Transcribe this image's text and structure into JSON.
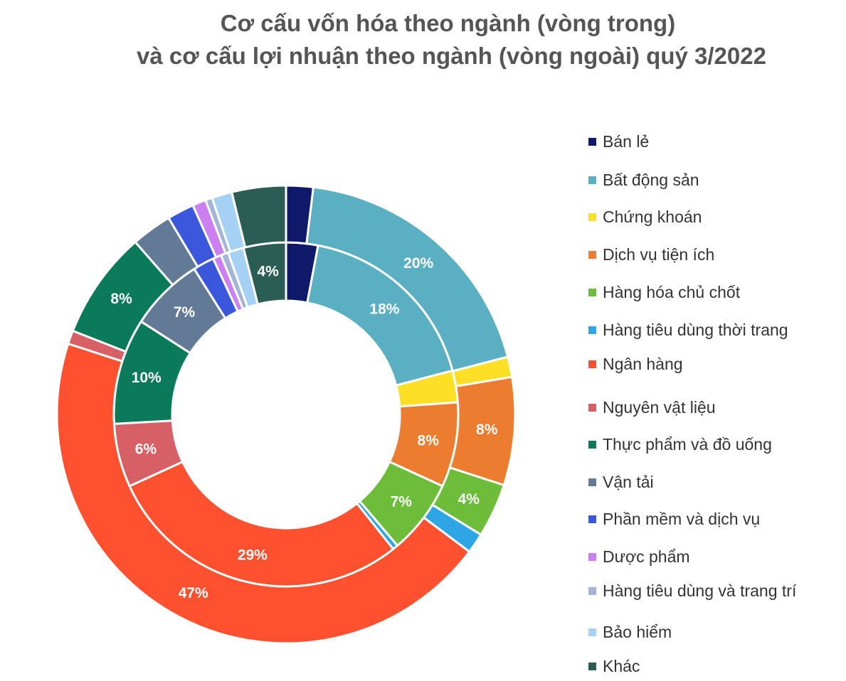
{
  "title_line1": "Cơ cấu vốn hóa theo ngành (vòng trong)",
  "title_line2": "và cơ cấu lợi nhuận theo ngành (vòng ngoài) quý 3/2022",
  "chart_data": {
    "type": "pie",
    "subtype": "double-doughnut",
    "title": "Cơ cấu vốn hóa theo ngành (vòng trong) và cơ cấu lợi nhuận theo ngành (vòng ngoài) quý 3/2022",
    "legend_position": "right",
    "categories": [
      "Bán lẻ",
      "Bất động sản",
      "Chứng khoán",
      "Dịch vụ tiện ích",
      "Hàng hóa chủ chốt",
      "Hàng tiêu dùng thời trang",
      "Ngân hàng",
      "Nguyên vật liệu",
      "Thực phẩm và đồ uống",
      "Vận tải",
      "Phần mềm và dịch vụ",
      "Dược phẩm",
      "Hàng tiêu dùng và trang trí",
      "Bảo hiểm",
      "Khác"
    ],
    "colors": [
      "#0f1a6b",
      "#5aafc3",
      "#fde026",
      "#ec7c30",
      "#6dbd3a",
      "#2ea6e6",
      "#ff5130",
      "#d66065",
      "#0a7a5a",
      "#627a95",
      "#3b57db",
      "#cc80f0",
      "#a3b4d4",
      "#a5d1f5",
      "#2a5e55"
    ],
    "series": [
      {
        "name": "vòng trong",
        "values": [
          3,
          18,
          3,
          8,
          7,
          0.5,
          29,
          6,
          10,
          7,
          2,
          0.8,
          0.7,
          1.5,
          4
        ],
        "labels": [
          "",
          "18%",
          "",
          "8%",
          "7%",
          "",
          "29%",
          "6%",
          "10%",
          "7%",
          "",
          "",
          "",
          "",
          "4%"
        ]
      },
      {
        "name": "vòng ngoài",
        "values": [
          2,
          20,
          1.5,
          8,
          4,
          1.5,
          47,
          1,
          8,
          3,
          2,
          1,
          0.5,
          1.5,
          4
        ],
        "labels": [
          "",
          "20%",
          "",
          "8%",
          "4%",
          "",
          "47%",
          "",
          "8%",
          "",
          "",
          "",
          "",
          "",
          ""
        ]
      }
    ]
  }
}
